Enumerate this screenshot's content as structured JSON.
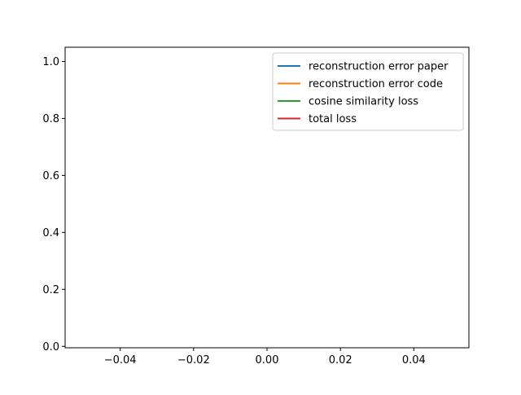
{
  "chart_data": {
    "type": "line",
    "title": "",
    "xlabel": "",
    "ylabel": "",
    "xlim": [
      -0.055,
      0.055
    ],
    "ylim": [
      -0.005,
      1.05
    ],
    "x_ticks": [
      -0.04,
      -0.02,
      0.0,
      0.02,
      0.04
    ],
    "x_tick_labels": [
      "−0.04",
      "−0.02",
      "0.00",
      "0.02",
      "0.04"
    ],
    "y_ticks": [
      0.0,
      0.2,
      0.4,
      0.6,
      0.8,
      1.0
    ],
    "y_tick_labels": [
      "0.0",
      "0.2",
      "0.4",
      "0.6",
      "0.8",
      "1.0"
    ],
    "grid": false,
    "legend_position": "top-right",
    "series": [
      {
        "name": "reconstruction error paper",
        "color": "#1f77b4",
        "x": [],
        "y": []
      },
      {
        "name": "reconstruction error code",
        "color": "#ff7f0e",
        "x": [],
        "y": []
      },
      {
        "name": "cosine similarity loss",
        "color": "#2ca02c",
        "x": [],
        "y": []
      },
      {
        "name": "total loss",
        "color": "#d62728",
        "x": [],
        "y": []
      }
    ]
  }
}
